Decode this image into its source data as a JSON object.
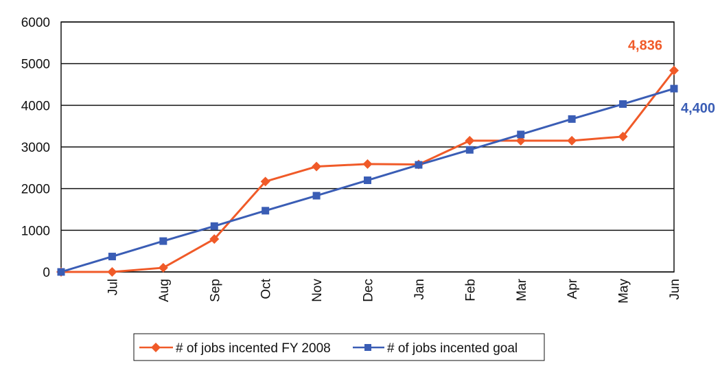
{
  "chart_data": {
    "type": "line",
    "categories": [
      "",
      "Jul",
      "Aug",
      "Sep",
      "Oct",
      "Nov",
      "Dec",
      "Jan",
      "Feb",
      "Mar",
      "Apr",
      "May",
      "Jun"
    ],
    "ylim": [
      0,
      6000
    ],
    "yticks": [
      0,
      1000,
      2000,
      3000,
      4000,
      5000,
      6000
    ],
    "grid": true,
    "legend_position": "bottom",
    "series": [
      {
        "name": "# of jobs incented FY 2008",
        "color": "#f05a28",
        "marker": "diamond",
        "values": [
          0,
          0,
          100,
          790,
          2170,
          2530,
          2590,
          2580,
          3150,
          3150,
          3150,
          3250,
          4836
        ]
      },
      {
        "name": "# of jobs incented goal",
        "color": "#3a5db5",
        "marker": "square",
        "values": [
          0,
          370,
          740,
          1100,
          1470,
          1830,
          2200,
          2570,
          2930,
          3300,
          3670,
          4030,
          4400
        ]
      }
    ],
    "annotations": [
      {
        "series": 0,
        "index": 12,
        "text": "4,836"
      },
      {
        "series": 1,
        "index": 12,
        "text": "4,400"
      }
    ]
  }
}
